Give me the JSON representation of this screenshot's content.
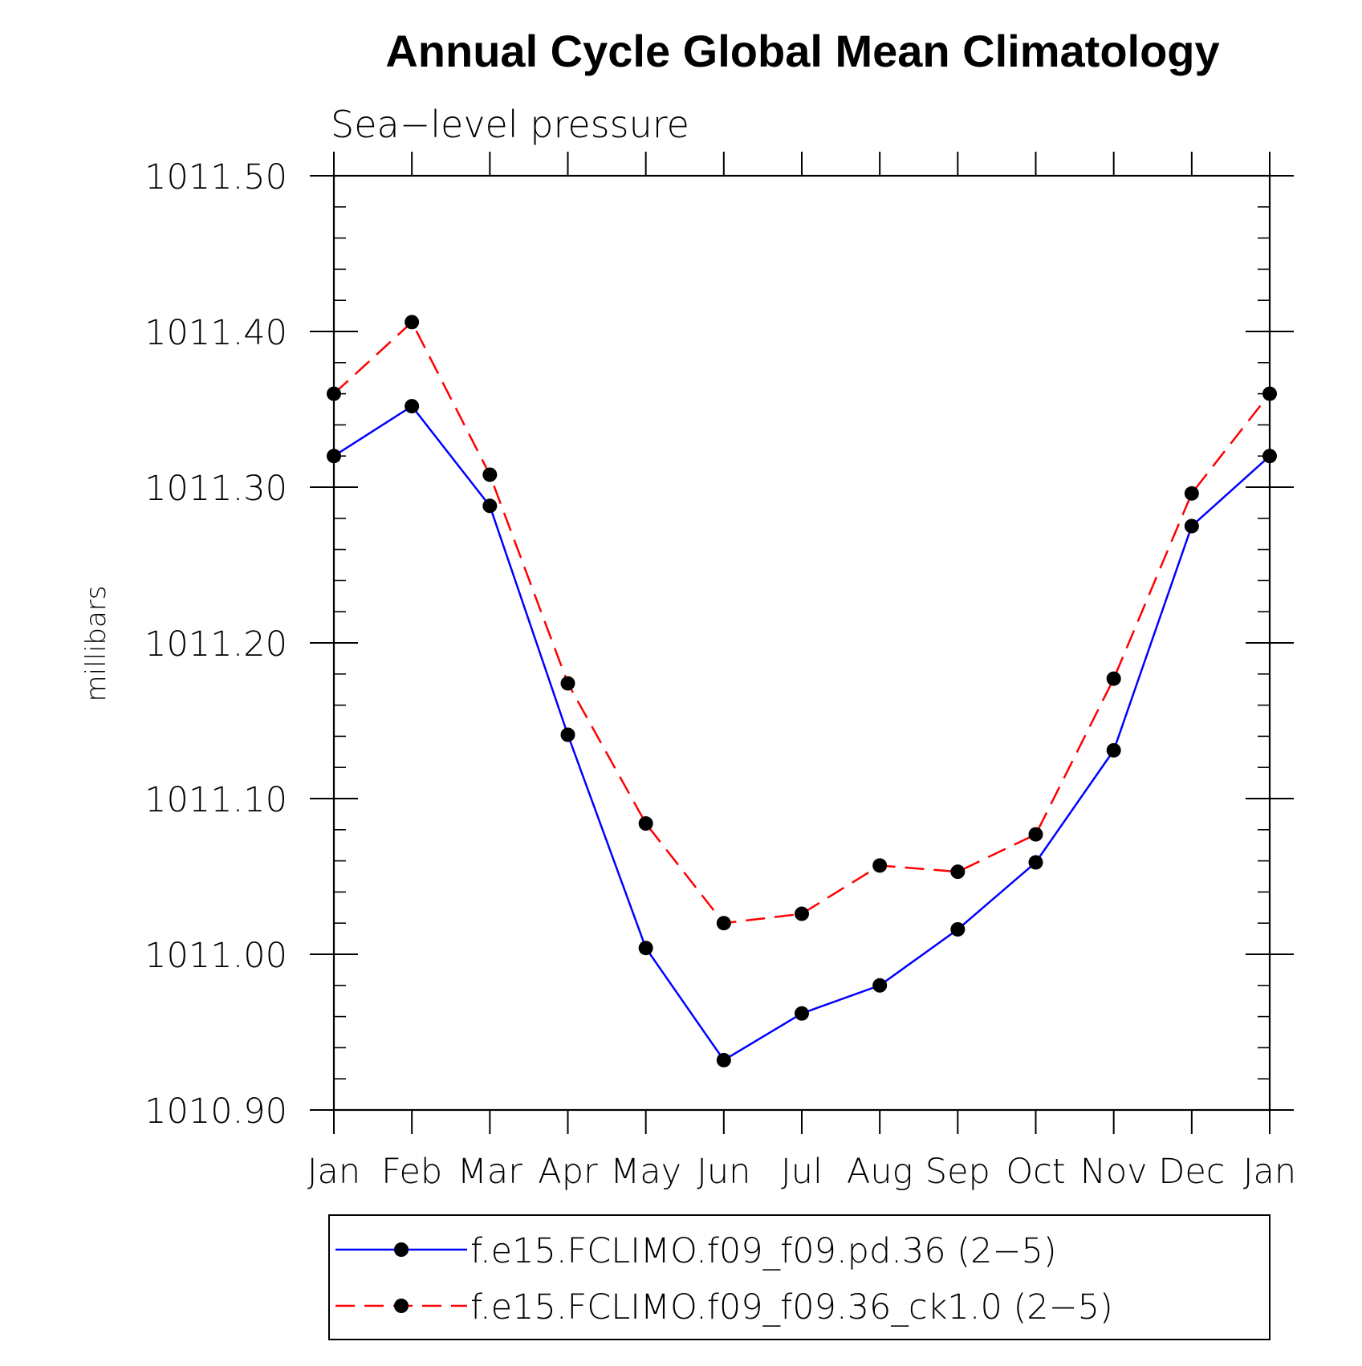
{
  "chart_data": {
    "type": "line",
    "title": "Annual Cycle Global Mean Climatology",
    "subtitle": "Sea−level pressure",
    "xlabel": "",
    "ylabel": "millibars",
    "categories": [
      "Jan",
      "Feb",
      "Mar",
      "Apr",
      "May",
      "Jun",
      "Jul",
      "Aug",
      "Sep",
      "Oct",
      "Nov",
      "Dec",
      "Jan"
    ],
    "ylim": [
      1010.9,
      1011.5
    ],
    "yticks": [
      1010.9,
      1011.0,
      1011.1,
      1011.2,
      1011.3,
      1011.4,
      1011.5
    ],
    "ytick_labels": [
      "1010.90",
      "1011.00",
      "1011.10",
      "1011.20",
      "1011.30",
      "1011.40",
      "1011.50"
    ],
    "grid": false,
    "legend_position": "bottom",
    "series": [
      {
        "name": "f.e15.FCLIMO.f09_f09.pd.36 (2−5)",
        "color": "#0000ff",
        "line_style": "solid",
        "marker": "filled-circle",
        "values": [
          1011.32,
          1011.352,
          1011.288,
          1011.141,
          1011.004,
          1010.932,
          1010.962,
          1010.98,
          1011.016,
          1011.059,
          1011.131,
          1011.275,
          1011.32
        ]
      },
      {
        "name": "f.e15.FCLIMO.f09_f09.36_ck1.0 (2−5)",
        "color": "#ff0000",
        "line_style": "dashed",
        "marker": "filled-circle",
        "values": [
          1011.36,
          1011.406,
          1011.308,
          1011.174,
          1011.084,
          1011.02,
          1011.026,
          1011.057,
          1011.053,
          1011.077,
          1011.177,
          1011.296,
          1011.36
        ]
      }
    ],
    "marker_color": "#000000"
  }
}
